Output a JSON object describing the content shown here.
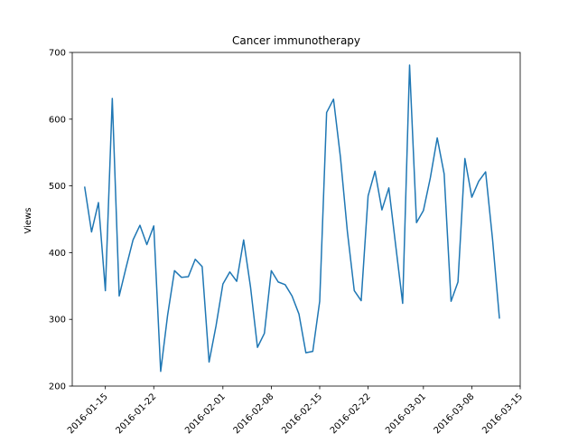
{
  "chart_data": {
    "type": "line",
    "title": "Cancer immunotherapy",
    "xlabel": "",
    "ylabel": "Views",
    "ylim": [
      200,
      700
    ],
    "y_ticks": [
      200,
      300,
      400,
      500,
      600,
      700
    ],
    "x_ticks": [
      "2016-01-15",
      "2016-01-22",
      "2016-02-01",
      "2016-02-08",
      "2016-02-15",
      "2016-02-22",
      "2016-03-01",
      "2016-03-08",
      "2016-03-15"
    ],
    "x_tick_labels": [
      "2016-01-15",
      "2016-01-22",
      "2016-02-01",
      "2016-02-08",
      "2016-02-15",
      "2016-02-22",
      "2016-03-01",
      "2016-03-08",
      "2016-03-15"
    ],
    "x_range": [
      "2016-01-12",
      "2016-03-15"
    ],
    "grid": false,
    "legend": "none",
    "line_color": "#1f77b4",
    "series": [
      {
        "x": [
          "2016-01-12",
          "2016-01-13",
          "2016-01-14",
          "2016-01-15",
          "2016-01-16",
          "2016-01-17",
          "2016-01-18",
          "2016-01-19",
          "2016-01-20",
          "2016-01-21",
          "2016-01-22",
          "2016-01-23",
          "2016-01-24",
          "2016-01-25",
          "2016-01-26",
          "2016-01-27",
          "2016-01-28",
          "2016-01-29",
          "2016-01-30",
          "2016-01-31",
          "2016-02-01",
          "2016-02-02",
          "2016-02-03",
          "2016-02-04",
          "2016-02-05",
          "2016-02-06",
          "2016-02-07",
          "2016-02-08",
          "2016-02-09",
          "2016-02-10",
          "2016-02-11",
          "2016-02-12",
          "2016-02-13",
          "2016-02-14",
          "2016-02-15",
          "2016-02-16",
          "2016-02-17",
          "2016-02-18",
          "2016-02-19",
          "2016-02-20",
          "2016-02-21",
          "2016-02-22",
          "2016-02-23",
          "2016-02-24",
          "2016-02-25",
          "2016-02-26",
          "2016-02-27",
          "2016-02-28",
          "2016-02-29",
          "2016-03-01",
          "2016-03-02",
          "2016-03-03",
          "2016-03-04",
          "2016-03-05",
          "2016-03-06",
          "2016-03-07",
          "2016-03-08",
          "2016-03-09",
          "2016-03-10",
          "2016-03-11",
          "2016-03-12"
        ],
        "values": [
          499,
          431,
          475,
          343,
          631,
          335,
          378,
          419,
          441,
          412,
          440,
          222,
          306,
          373,
          363,
          364,
          390,
          379,
          236,
          290,
          353,
          371,
          357,
          419,
          348,
          258,
          279,
          373,
          356,
          352,
          335,
          308,
          250,
          252,
          327,
          610,
          630,
          543,
          432,
          343,
          328,
          485,
          522,
          464,
          497,
          410,
          324,
          681,
          445,
          463,
          512,
          572,
          518,
          327,
          356,
          541,
          483,
          507,
          521,
          420,
          301
        ]
      }
    ]
  }
}
